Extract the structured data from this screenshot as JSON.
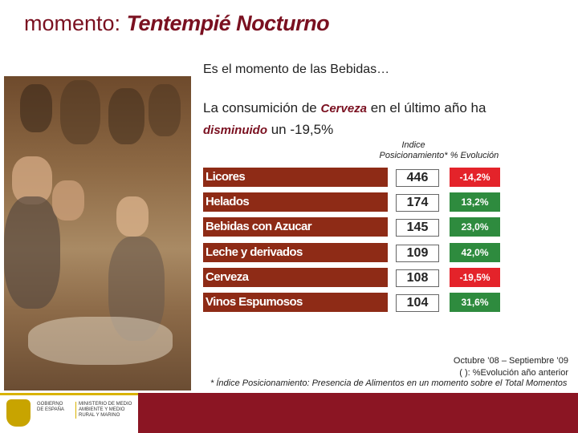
{
  "title": {
    "lead": "momento: ",
    "name": "Tentempié Nocturno"
  },
  "subtitle": "Es el momento de las Bebidas…",
  "paragraph": {
    "p1": "La consumición de ",
    "product": "Cerveza",
    "p2": " en el último año ha",
    "trend": "disminuido",
    "p3": " un -19,5%"
  },
  "columns": {
    "index_header": "Indice Posicionamiento*",
    "evo_header": "% Evolución"
  },
  "colors": {
    "bar": "#8e2b16",
    "evo_up": "#2e8b3e",
    "evo_down": "#e4232a",
    "title": "#7a1020"
  },
  "rows": [
    {
      "category": "Licores",
      "index": "446",
      "evolution": "-14,2%",
      "trend": "down"
    },
    {
      "category": "Helados",
      "index": "174",
      "evolution": "13,2%",
      "trend": "up"
    },
    {
      "category": "Bebidas con Azucar",
      "index": "145",
      "evolution": "23,0%",
      "trend": "up"
    },
    {
      "category": "Leche y derivados",
      "index": "109",
      "evolution": "42,0%",
      "trend": "up"
    },
    {
      "category": "Cerveza",
      "index": "108",
      "evolution": "-19,5%",
      "trend": "down"
    },
    {
      "category": "Vinos Espumosos",
      "index": "104",
      "evolution": "31,6%",
      "trend": "up"
    }
  ],
  "notes": {
    "period": "Octubre ’08 – Septiembre ’09",
    "legend": "( ): %Evolución año anterior",
    "footnote": "* Índice Posicionamiento: Presencia de Alimentos en un momento sobre el Total Momentos"
  },
  "footer": {
    "gobierno": "GOBIERNO DE ESPAÑA",
    "ministerio": "MINISTERIO DE MEDIO AMBIENTE Y MEDIO RURAL Y MARINO"
  }
}
